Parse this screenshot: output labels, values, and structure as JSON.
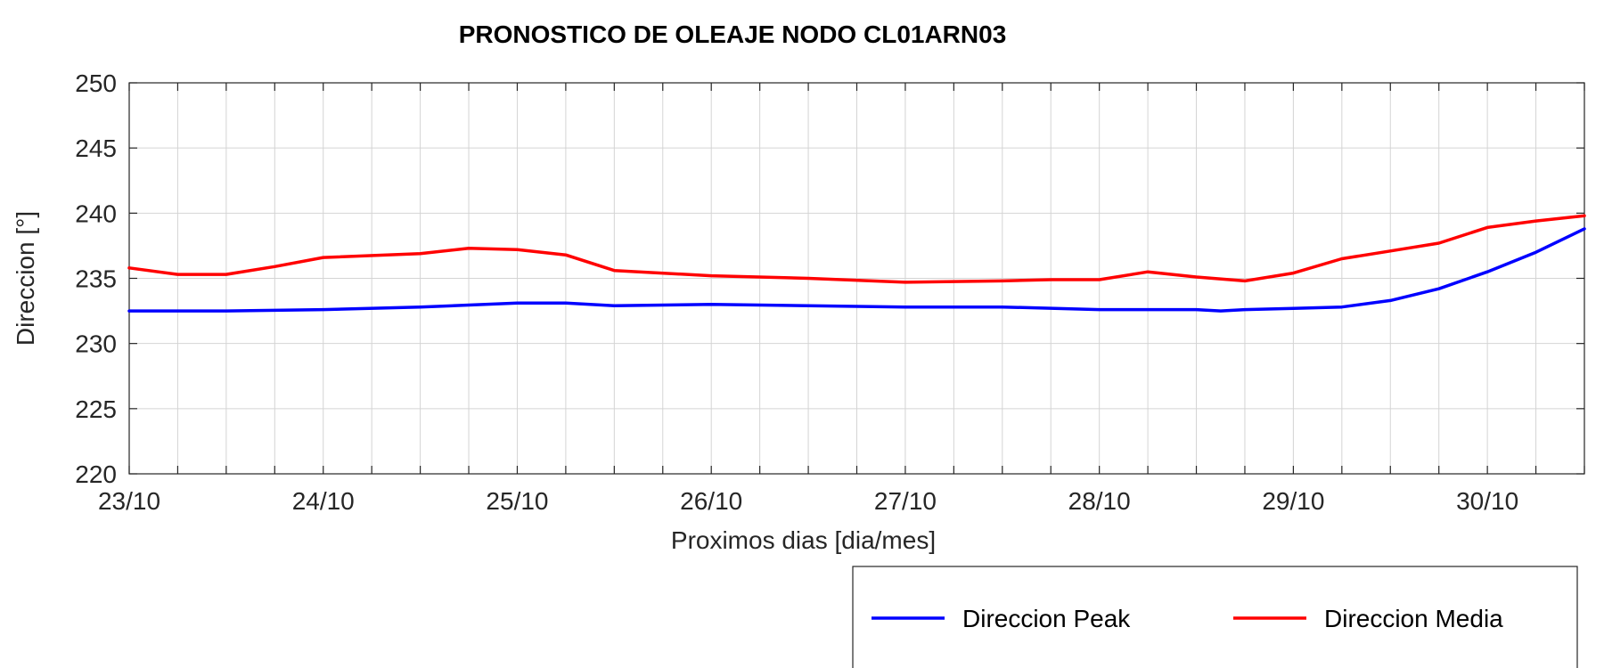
{
  "chart_data": {
    "type": "line",
    "title": "PRONOSTICO DE OLEAJE NODO CL01ARN03",
    "xlabel": "Proximos dias [dia/mes]",
    "ylabel": "Direccion [°]",
    "ylim": [
      220,
      250
    ],
    "yticks": [
      220,
      225,
      230,
      235,
      240,
      245,
      250
    ],
    "xlim": [
      "2023-10-23 00:00",
      "2023-10-30 12:00"
    ],
    "xticks": [
      "23/10",
      "24/10",
      "25/10",
      "26/10",
      "27/10",
      "28/10",
      "29/10",
      "30/10"
    ],
    "x_minor_step_hours": 6,
    "grid": true,
    "legend_position": "bottom-right-outside",
    "series": [
      {
        "name": "Direccion Peak",
        "color": "#0000ff",
        "points": [
          [
            "2023-10-23 00:00",
            232.5
          ],
          [
            "2023-10-23 12:00",
            232.5
          ],
          [
            "2023-10-24 00:00",
            232.6
          ],
          [
            "2023-10-24 12:00",
            232.8
          ],
          [
            "2023-10-25 00:00",
            233.1
          ],
          [
            "2023-10-25 06:00",
            233.1
          ],
          [
            "2023-10-25 12:00",
            232.9
          ],
          [
            "2023-10-26 00:00",
            233.0
          ],
          [
            "2023-10-26 12:00",
            232.9
          ],
          [
            "2023-10-27 00:00",
            232.8
          ],
          [
            "2023-10-27 12:00",
            232.8
          ],
          [
            "2023-10-28 00:00",
            232.6
          ],
          [
            "2023-10-28 12:00",
            232.6
          ],
          [
            "2023-10-28 15:00",
            232.5
          ],
          [
            "2023-10-28 18:00",
            232.6
          ],
          [
            "2023-10-29 00:00",
            232.7
          ],
          [
            "2023-10-29 06:00",
            232.8
          ],
          [
            "2023-10-29 12:00",
            233.3
          ],
          [
            "2023-10-29 18:00",
            234.2
          ],
          [
            "2023-10-30 00:00",
            235.5
          ],
          [
            "2023-10-30 06:00",
            237.0
          ],
          [
            "2023-10-30 12:00",
            238.8
          ]
        ]
      },
      {
        "name": "Direccion Media",
        "color": "#ff0000",
        "points": [
          [
            "2023-10-23 00:00",
            235.8
          ],
          [
            "2023-10-23 06:00",
            235.3
          ],
          [
            "2023-10-23 12:00",
            235.3
          ],
          [
            "2023-10-23 18:00",
            235.9
          ],
          [
            "2023-10-24 00:00",
            236.6
          ],
          [
            "2023-10-24 12:00",
            236.9
          ],
          [
            "2023-10-24 18:00",
            237.3
          ],
          [
            "2023-10-25 00:00",
            237.2
          ],
          [
            "2023-10-25 06:00",
            236.8
          ],
          [
            "2023-10-25 12:00",
            235.6
          ],
          [
            "2023-10-26 00:00",
            235.2
          ],
          [
            "2023-10-26 12:00",
            235.0
          ],
          [
            "2023-10-27 00:00",
            234.7
          ],
          [
            "2023-10-27 12:00",
            234.8
          ],
          [
            "2023-10-27 18:00",
            234.9
          ],
          [
            "2023-10-28 00:00",
            234.9
          ],
          [
            "2023-10-28 06:00",
            235.5
          ],
          [
            "2023-10-28 12:00",
            235.1
          ],
          [
            "2023-10-28 18:00",
            234.8
          ],
          [
            "2023-10-29 00:00",
            235.4
          ],
          [
            "2023-10-29 06:00",
            236.5
          ],
          [
            "2023-10-29 12:00",
            237.1
          ],
          [
            "2023-10-29 18:00",
            237.7
          ],
          [
            "2023-10-30 00:00",
            238.9
          ],
          [
            "2023-10-30 06:00",
            239.4
          ],
          [
            "2023-10-30 12:00",
            239.8
          ]
        ]
      }
    ]
  }
}
